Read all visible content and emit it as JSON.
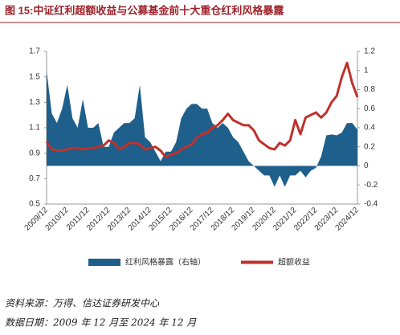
{
  "chart_data": {
    "type": "combo",
    "title": "图 15:中证红利超额收益与公募基金前十大重仓红利风格暴露",
    "notes": [
      "资料来源：万得、信达证券研发中心",
      "数据日期：2009 年 12 月至 2024 年 12 月"
    ],
    "categories": [
      "2009/12",
      null,
      null,
      null,
      "2010/12",
      null,
      null,
      null,
      "2011/12",
      null,
      null,
      null,
      "2012/12",
      null,
      null,
      null,
      "2013/12",
      null,
      null,
      null,
      "2014/12",
      null,
      null,
      null,
      "2015/12",
      null,
      null,
      null,
      "2016/12",
      null,
      null,
      null,
      "2017/12",
      null,
      null,
      null,
      "2018/12",
      null,
      null,
      null,
      "2019/12",
      null,
      null,
      null,
      "2020/12",
      null,
      null,
      null,
      "2021/12",
      null,
      null,
      null,
      "2022/12",
      null,
      null,
      null,
      "2023/12",
      null,
      null,
      null,
      "2024/12"
    ],
    "series": [
      {
        "name": "红利风格暴露（右轴）",
        "type": "area",
        "axis": "y2",
        "color": "#1f5f8b",
        "values": [
          1.0,
          0.55,
          0.45,
          0.6,
          0.85,
          0.5,
          0.4,
          0.7,
          0.4,
          0.4,
          0.45,
          0.2,
          0.2,
          0.35,
          0.4,
          0.45,
          0.45,
          0.5,
          0.85,
          0.3,
          0.25,
          0.15,
          0.05,
          0.15,
          0.15,
          0.25,
          0.5,
          0.6,
          0.65,
          0.65,
          0.6,
          0.6,
          0.45,
          0.4,
          0.45,
          0.4,
          0.3,
          0.25,
          0.15,
          0.05,
          0.0,
          -0.05,
          -0.1,
          -0.1,
          -0.22,
          -0.1,
          -0.22,
          -0.1,
          -0.1,
          -0.05,
          -0.12,
          -0.05,
          -0.02,
          0.1,
          0.32,
          0.33,
          0.32,
          0.35,
          0.45,
          0.45,
          0.38
        ]
      },
      {
        "name": "超额收益",
        "type": "line",
        "axis": "y",
        "color": "#c0312b",
        "values": [
          0.99,
          0.93,
          0.92,
          0.92,
          0.93,
          0.94,
          0.94,
          0.93,
          0.94,
          0.94,
          0.95,
          0.96,
          1.0,
          0.98,
          0.93,
          0.95,
          0.98,
          0.98,
          0.97,
          0.93,
          0.94,
          0.95,
          0.92,
          0.87,
          0.89,
          0.9,
          0.93,
          0.95,
          0.97,
          1.02,
          1.05,
          1.06,
          1.1,
          1.12,
          1.16,
          1.21,
          1.16,
          1.14,
          1.12,
          1.12,
          1.08,
          1.0,
          0.97,
          0.94,
          0.93,
          0.98,
          0.96,
          1.0,
          1.16,
          1.05,
          1.18,
          1.2,
          1.22,
          1.18,
          1.22,
          1.3,
          1.35,
          1.5,
          1.61,
          1.45,
          1.34
        ]
      }
    ],
    "ylim": [
      0.5,
      1.7
    ],
    "yticks": [
      0.5,
      0.7,
      0.9,
      1.1,
      1.3,
      1.5,
      1.7
    ],
    "y2lim": [
      -0.4,
      1.2
    ],
    "y2ticks": [
      -0.4,
      -0.2,
      0,
      0.2,
      0.4,
      0.6,
      0.8,
      1,
      1.2
    ]
  }
}
